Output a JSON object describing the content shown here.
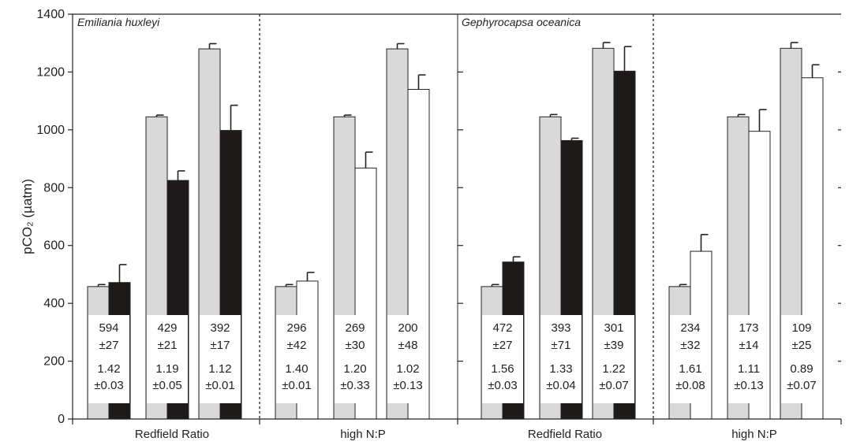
{
  "chart_data": {
    "type": "bar",
    "ylabel": "pCO₂ (µatm)",
    "ylim": [
      0,
      1400
    ],
    "yticks": [
      "0",
      "200",
      "400",
      "600",
      "800",
      "1000",
      "1200",
      "1400"
    ],
    "colors": {
      "reference": "#d9d9d9",
      "redfield": "#1e1a19",
      "high_np": "#ffffff",
      "stroke": "#222222"
    },
    "panels": [
      {
        "species": "Emiliania huxleyi",
        "groups": [
          {
            "label": "Redfield Ratio",
            "treatment": "redfield",
            "pairs": [
              {
                "reference": 458,
                "reference_err": 7,
                "value": 472,
                "err": 62,
                "box": [
                  "594",
                  "±27",
                  "1.42",
                  "±0.03"
                ]
              },
              {
                "reference": 1045,
                "reference_err": 6,
                "value": 825,
                "err": 33,
                "box": [
                  "429",
                  "±21",
                  "1.19",
                  "±0.05"
                ]
              },
              {
                "reference": 1280,
                "reference_err": 18,
                "value": 998,
                "err": 87,
                "box": [
                  "392",
                  "±17",
                  "1.12",
                  "±0.01"
                ]
              }
            ]
          },
          {
            "label": "high N:P",
            "treatment": "high_np",
            "pairs": [
              {
                "reference": 458,
                "reference_err": 7,
                "value": 477,
                "err": 30,
                "box": [
                  "296",
                  "±42",
                  "1.40",
                  "±0.01"
                ]
              },
              {
                "reference": 1045,
                "reference_err": 6,
                "value": 868,
                "err": 55,
                "box": [
                  "269",
                  "±30",
                  "1.20",
                  "±0.33"
                ]
              },
              {
                "reference": 1280,
                "reference_err": 18,
                "value": 1140,
                "err": 50,
                "box": [
                  "200",
                  "±48",
                  "1.02",
                  "±0.13"
                ]
              }
            ]
          }
        ]
      },
      {
        "species": "Gephyrocapsa oceanica",
        "groups": [
          {
            "label": "Redfield Ratio",
            "treatment": "redfield",
            "pairs": [
              {
                "reference": 458,
                "reference_err": 7,
                "value": 543,
                "err": 18,
                "box": [
                  "472",
                  "±27",
                  "1.56",
                  "±0.03"
                ]
              },
              {
                "reference": 1045,
                "reference_err": 8,
                "value": 963,
                "err": 8,
                "box": [
                  "393",
                  "±71",
                  "1.33",
                  "±0.04"
                ]
              },
              {
                "reference": 1282,
                "reference_err": 20,
                "value": 1203,
                "err": 85,
                "box": [
                  "301",
                  "±39",
                  "1.22",
                  "±0.07"
                ]
              }
            ]
          },
          {
            "label": "high N:P",
            "treatment": "high_np",
            "pairs": [
              {
                "reference": 458,
                "reference_err": 7,
                "value": 580,
                "err": 58,
                "box": [
                  "234",
                  "±32",
                  "1.61",
                  "±0.08"
                ]
              },
              {
                "reference": 1045,
                "reference_err": 8,
                "value": 995,
                "err": 75,
                "box": [
                  "173",
                  "±14",
                  "1.11",
                  "±0.13"
                ]
              },
              {
                "reference": 1282,
                "reference_err": 20,
                "value": 1180,
                "err": 45,
                "box": [
                  "109",
                  "±25",
                  "0.89",
                  "±0.07"
                ]
              }
            ]
          }
        ]
      }
    ]
  }
}
